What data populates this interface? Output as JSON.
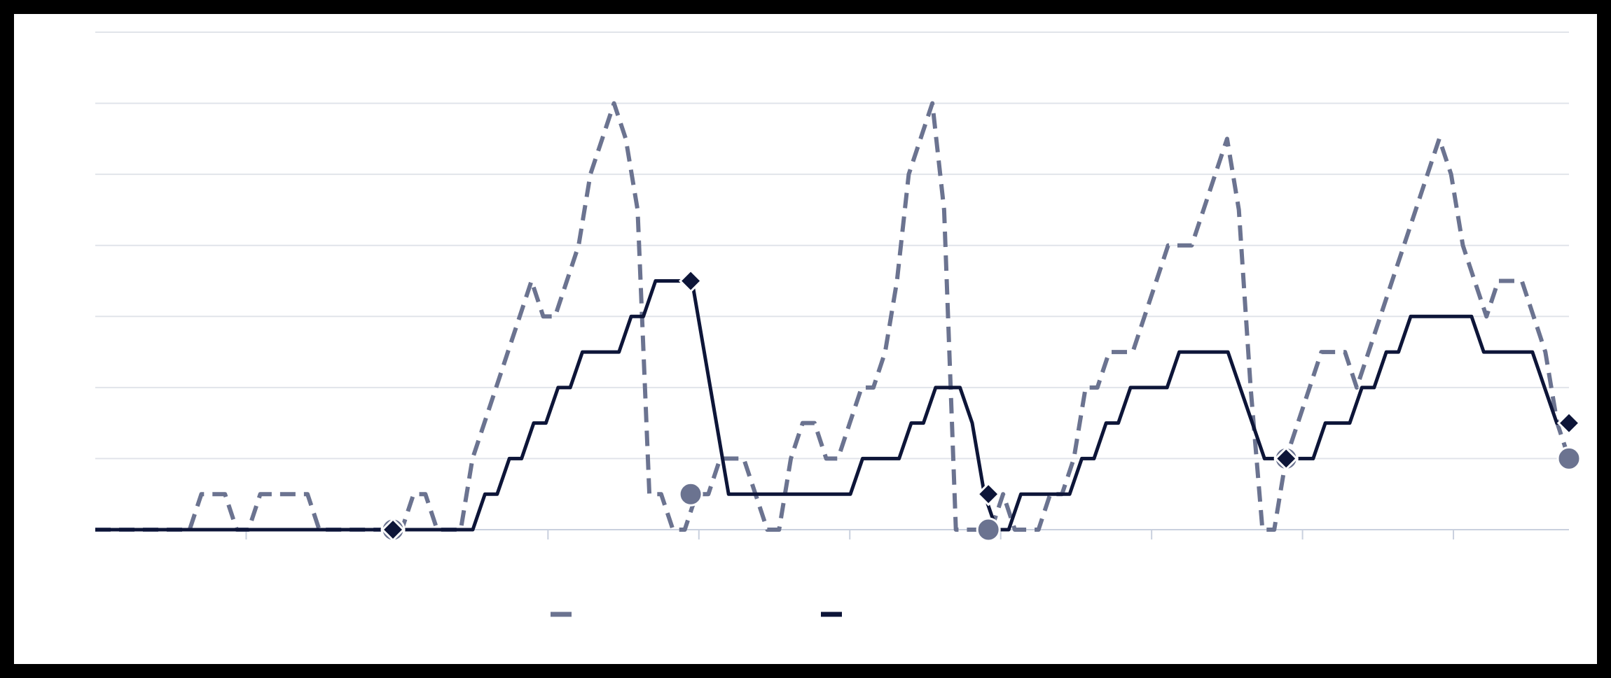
{
  "chart_data": {
    "type": "line",
    "title": "",
    "xlabel": "",
    "ylabel": "",
    "grid": true,
    "legend_position": "bottom-center",
    "xlim": [
      0,
      100
    ],
    "ylim": [
      0,
      7
    ],
    "series": [
      {
        "style": "dashed",
        "color": "#6b7390",
        "marker": "circle",
        "values": [
          0,
          0,
          0,
          0,
          0,
          0,
          0,
          0,
          0,
          0.5,
          0.5,
          0.5,
          0,
          0,
          0.5,
          0.5,
          0.5,
          0.5,
          0.5,
          0,
          0,
          0,
          0,
          0,
          0,
          0,
          0,
          0.5,
          0.5,
          0,
          0,
          0,
          1,
          1.5,
          2,
          2.5,
          3,
          3.5,
          3,
          3,
          3.5,
          4,
          5,
          5.5,
          6,
          5.5,
          4.5,
          0.5,
          0.5,
          0,
          0,
          0.5,
          0.5,
          1,
          1,
          1,
          0.5,
          0,
          0,
          1,
          1.5,
          1.5,
          1,
          1,
          1.5,
          2,
          2,
          2.5,
          3.5,
          5,
          5.5,
          6,
          4.5,
          0,
          0,
          0,
          0,
          0.5,
          0,
          0,
          0,
          0.5,
          0.5,
          1,
          2,
          2,
          2.5,
          2.5,
          2.5,
          3,
          3.5,
          4,
          4,
          4,
          4.5,
          5,
          5.5,
          4.5,
          2,
          0,
          0,
          1,
          1.5,
          2,
          2.5,
          2.5,
          2.5,
          2,
          2.5,
          3,
          3.5,
          4,
          4.5,
          5,
          5.5,
          5,
          4,
          3.5,
          3,
          3.5,
          3.5,
          3.5,
          3,
          2.5,
          1.5,
          1
        ]
      },
      {
        "style": "solid",
        "color": "#0d1538",
        "marker": "diamond",
        "values": [
          0,
          0,
          0,
          0,
          0,
          0,
          0,
          0,
          0,
          0,
          0,
          0,
          0,
          0,
          0,
          0,
          0,
          0,
          0,
          0,
          0,
          0,
          0,
          0,
          0,
          0,
          0,
          0,
          0,
          0,
          0,
          0,
          0.5,
          0.5,
          1,
          1,
          1.5,
          1.5,
          2,
          2,
          2.5,
          2.5,
          2.5,
          2.5,
          3,
          3,
          3.5,
          3.5,
          3.5,
          3.5,
          2.5,
          1.5,
          0.5,
          0.5,
          0.5,
          0.5,
          0.5,
          0.5,
          0.5,
          0.5,
          0.5,
          0.5,
          0.5,
          1,
          1,
          1,
          1,
          1.5,
          1.5,
          2,
          2,
          2,
          1.5,
          0.5,
          0,
          0,
          0.5,
          0.5,
          0.5,
          0.5,
          0.5,
          1,
          1,
          1.5,
          1.5,
          2,
          2,
          2,
          2,
          2.5,
          2.5,
          2.5,
          2.5,
          2.5,
          2,
          1.5,
          1,
          1,
          1,
          1,
          1,
          1.5,
          1.5,
          1.5,
          2,
          2,
          2.5,
          2.5,
          3,
          3,
          3,
          3,
          3,
          3,
          2.5,
          2.5,
          2.5,
          2.5,
          2.5,
          2,
          1.5,
          1.5
        ]
      }
    ]
  }
}
